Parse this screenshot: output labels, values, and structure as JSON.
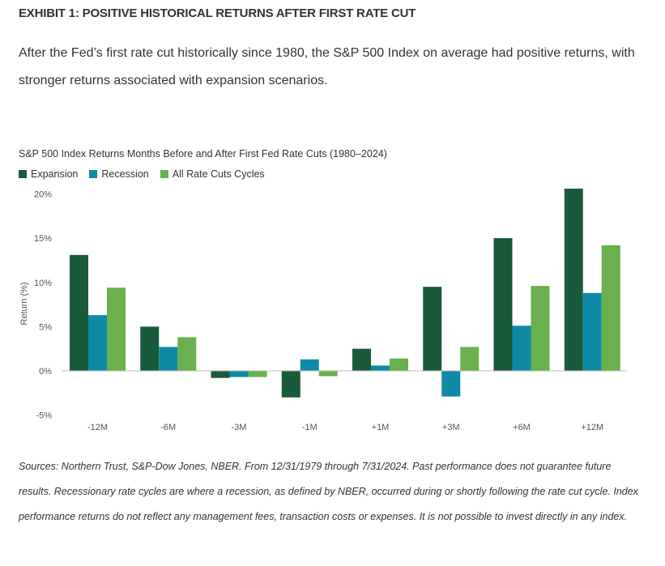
{
  "header": {
    "exhibit_title": "EXHIBIT 1: POSITIVE HISTORICAL RETURNS AFTER FIRST RATE CUT",
    "subtitle": "After the Fed’s first rate cut historically since 1980, the S&P 500 Index on average had positive returns, with stronger returns associated with expansion scenarios."
  },
  "footer": {
    "sources": "Sources: Northern Trust, S&P-Dow Jones, NBER. From 12/31/1979 through 7/31/2024. Past performance does not guarantee future results. Recessionary rate cycles are where a recession, as defined by NBER, occurred during or shortly following the rate cut cycle. Index performance returns do not reflect any management fees, transaction costs or expenses. It is not possible to invest directly in any index."
  },
  "chart_data": {
    "type": "bar",
    "title": "S&P 500 Index Returns Months Before and After First Fed Rate Cuts (1980–2024)",
    "ylabel": "Return (%)",
    "xlabel": "",
    "ylim": [
      -5,
      20
    ],
    "yticks": [
      "-5%",
      "0%",
      "5%",
      "10%",
      "15%",
      "20%"
    ],
    "ytick_values": [
      -5,
      0,
      5,
      10,
      15,
      20
    ],
    "legend_position": "top-left",
    "grid": false,
    "categories": [
      "-12M",
      "-6M",
      "-3M",
      "-1M",
      "+1M",
      "+3M",
      "+6M",
      "+12M"
    ],
    "series": [
      {
        "name": "Expansion",
        "color": "#1a5a3c",
        "values": [
          13.1,
          5.0,
          -0.8,
          -3.0,
          2.5,
          9.5,
          15.0,
          20.6
        ]
      },
      {
        "name": "Recession",
        "color": "#0f8aa6",
        "values": [
          6.3,
          2.7,
          -0.7,
          1.3,
          0.6,
          -2.9,
          5.1,
          8.8
        ]
      },
      {
        "name": "All Rate Cuts Cycles",
        "color": "#6ab04c",
        "values": [
          9.4,
          3.8,
          -0.7,
          -0.6,
          1.4,
          2.7,
          9.6,
          14.2
        ]
      }
    ]
  }
}
